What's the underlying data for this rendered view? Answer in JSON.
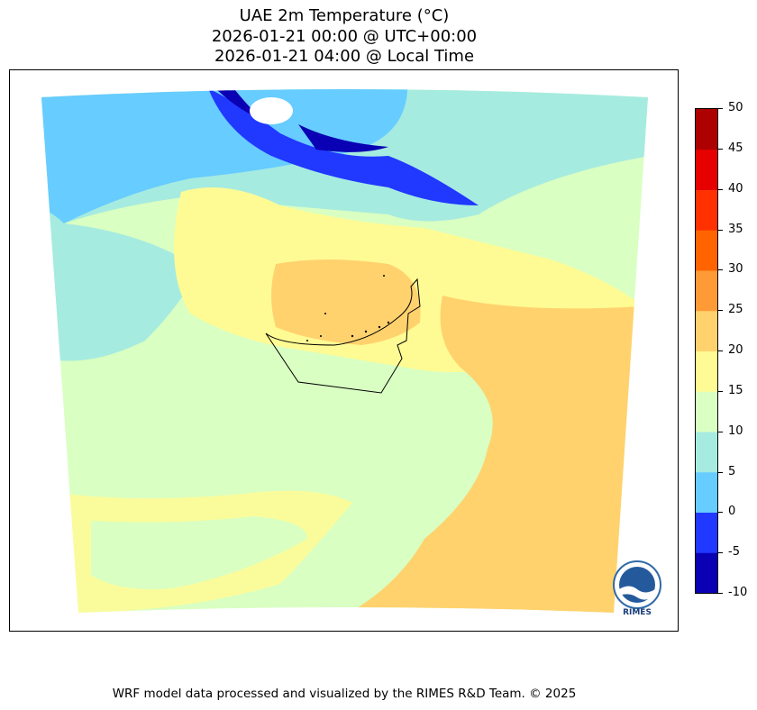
{
  "title": {
    "line1": "UAE 2m Temperature (°C)",
    "line2": "2026-01-21 00:00 @ UTC+00:00",
    "line3": "2026-01-21 04:00 @ Local Time"
  },
  "colorbar": {
    "levels": [
      -10,
      -5,
      0,
      5,
      10,
      15,
      20,
      25,
      30,
      35,
      40,
      45,
      50
    ],
    "tick_labels": [
      "50",
      "45",
      "40",
      "35",
      "30",
      "25",
      "20",
      "15",
      "10",
      "5",
      "0",
      "-5",
      "-10"
    ],
    "colors": [
      "#0a00b4",
      "#2138ff",
      "#67ccff",
      "#a6ebe0",
      "#d9ffc2",
      "#fffb94",
      "#ffd26e",
      "#ff9b37",
      "#ff6400",
      "#ff3100",
      "#e60000",
      "#ad0000"
    ]
  },
  "map": {
    "region": "UAE",
    "dominant_colors": {
      "sea_north": "#67ccff",
      "coast": "#a6ebe0",
      "land": "#d9ffc2",
      "warm": "#ffd26e",
      "cold": "#2138ff",
      "coldest": "#0a00b4"
    }
  },
  "logo": {
    "text": "RIMES"
  },
  "footer": "WRF model data processed and visualized by the RIMES R&D Team. © 2025"
}
